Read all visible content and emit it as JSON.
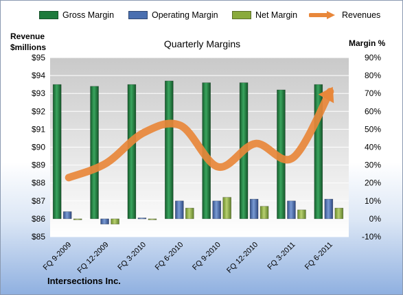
{
  "legend": {
    "gross": "Gross Margin",
    "operating": "Operating Margin",
    "net": "Net Margin",
    "revenues": "Revenues"
  },
  "left_axis_title": [
    "Revenue",
    "$millions"
  ],
  "right_axis_title": "Margin %",
  "company": "Intersections Inc.",
  "colors": {
    "gross": "#1e7a3c",
    "operating": "#4a6fb0",
    "net": "#8aaa3c",
    "revenues": "#e8873a"
  },
  "chart_data": {
    "type": "bar",
    "title": "Quarterly Margins",
    "categories": [
      "FQ 9-2009",
      "FQ 12-2009",
      "FQ 3-2010",
      "FQ 6-2010",
      "FQ 9-2010",
      "FQ 12-2010",
      "FQ 3-2011",
      "FQ 6-2011"
    ],
    "series": [
      {
        "name": "Gross Margin",
        "axis": "right",
        "values": [
          75,
          74,
          75,
          77,
          76,
          76,
          72,
          75
        ]
      },
      {
        "name": "Operating Margin",
        "axis": "right",
        "values": [
          4,
          -3,
          0.5,
          10,
          10,
          11,
          10,
          11
        ]
      },
      {
        "name": "Net Margin",
        "axis": "right",
        "values": [
          0,
          -3,
          -0.5,
          6,
          12,
          7,
          5,
          6
        ]
      },
      {
        "name": "Revenues",
        "axis": "left",
        "type": "line",
        "values": [
          88.3,
          89.1,
          90.8,
          91.2,
          88.9,
          90.2,
          89.4,
          93.1
        ]
      }
    ],
    "left_axis": {
      "min": 85,
      "max": 95,
      "step": 1,
      "tick_prefix": "$",
      "ticks": [
        "$85",
        "$86",
        "$87",
        "$88",
        "$89",
        "$90",
        "$91",
        "$92",
        "$93",
        "$94",
        "$95"
      ]
    },
    "right_axis": {
      "min": -10,
      "max": 90,
      "step": 10,
      "tick_suffix": "%",
      "ticks": [
        "-10%",
        "0%",
        "10%",
        "20%",
        "30%",
        "40%",
        "50%",
        "60%",
        "70%",
        "80%",
        "90%"
      ]
    },
    "grid": true,
    "legend_position": "top"
  }
}
